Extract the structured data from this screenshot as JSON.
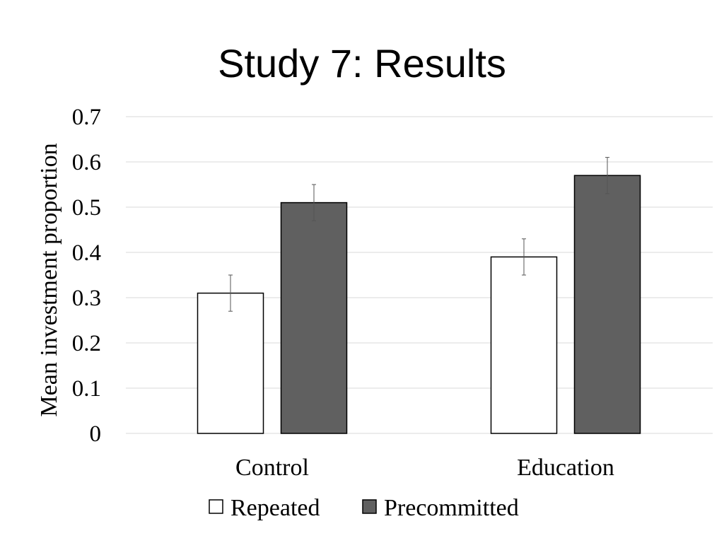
{
  "chart_data": {
    "type": "bar",
    "title": "Study 7: Results",
    "ylabel": "Mean investment proportion",
    "xlabel": "",
    "ylim": [
      0,
      0.7
    ],
    "yticks": [
      "0",
      "0.1",
      "0.2",
      "0.3",
      "0.4",
      "0.5",
      "0.6",
      "0.7"
    ],
    "categories": [
      "Control",
      "Education"
    ],
    "series": [
      {
        "name": "Repeated",
        "values": [
          0.31,
          0.39
        ],
        "error": [
          0.04,
          0.04
        ],
        "color": "#ffffff"
      },
      {
        "name": "Precommitted",
        "values": [
          0.51,
          0.57
        ],
        "error": [
          0.04,
          0.04
        ],
        "color": "#606060"
      }
    ],
    "grid": true,
    "legend_position": "bottom"
  }
}
